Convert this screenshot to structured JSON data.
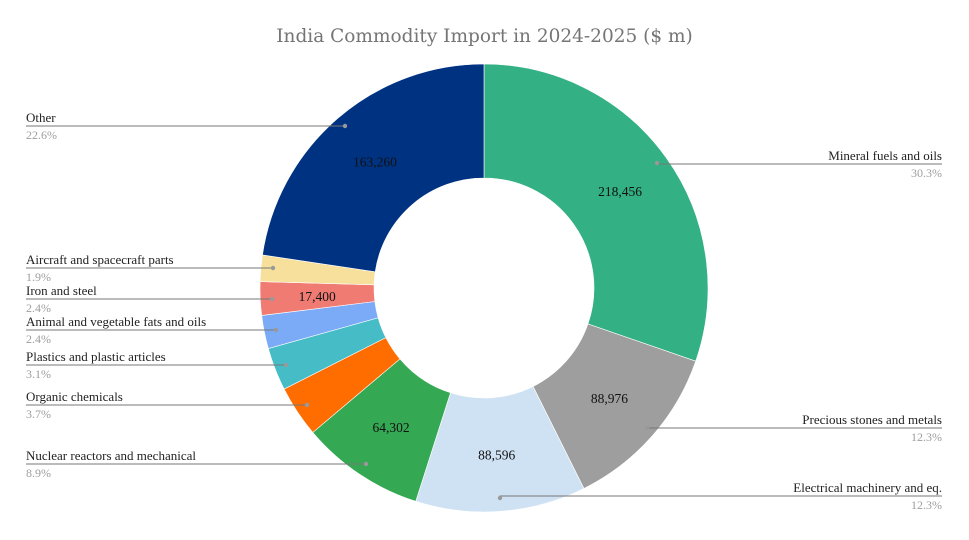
{
  "chart_data": {
    "type": "pie",
    "donut": true,
    "title": "India Commodity Import in 2024-2025 ($ m)",
    "legend": "labels-outside-with-leader-lines",
    "slices": [
      {
        "name": "Mineral fuels and oils",
        "value": 218456,
        "value_label": "218,456",
        "percent": "30.3%",
        "color": "#33b084"
      },
      {
        "name": "Precious stones and metals",
        "value": 88976,
        "value_label": "88,976",
        "percent": "12.3%",
        "color": "#9e9e9e"
      },
      {
        "name": "Electrical machinery and eq.",
        "value": 88596,
        "value_label": "88,596",
        "percent": "12.3%",
        "color": "#cfe2f3"
      },
      {
        "name": "Nuclear reactors and mechanical",
        "value": 64302,
        "value_label": "64,302",
        "percent": "8.9%",
        "color": "#34a853"
      },
      {
        "name": "Organic chemicals",
        "value": 26700,
        "value_label": "",
        "percent": "3.7%",
        "color": "#ff6d01"
      },
      {
        "name": "Plastics and plastic articles",
        "value": 22300,
        "value_label": "",
        "percent": "3.1%",
        "color": "#46bdc6"
      },
      {
        "name": "Animal and vegetable fats and oils",
        "value": 17300,
        "value_label": "",
        "percent": "2.4%",
        "color": "#7baaf7"
      },
      {
        "name": "Iron and steel",
        "value": 17400,
        "value_label": "17,400",
        "percent": "2.4%",
        "color": "#f07b72"
      },
      {
        "name": "Aircraft and spacecraft parts",
        "value": 13700,
        "value_label": "",
        "percent": "1.9%",
        "color": "#f7e09c"
      },
      {
        "name": "Other",
        "value": 163260,
        "value_label": "163,260",
        "percent": "22.6%",
        "color": "#003282"
      }
    ]
  }
}
